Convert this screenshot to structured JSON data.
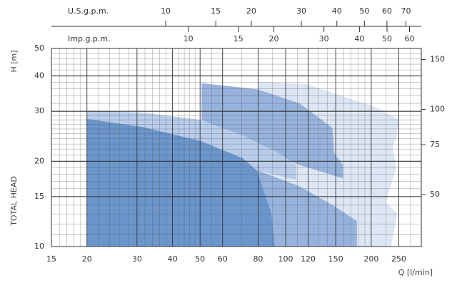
{
  "chart_data": {
    "type": "area",
    "xscale": "log",
    "yscale": "log",
    "xlabel": "Q [l/min]",
    "ylabel": "H [m]",
    "ylabel2": "TOTAL HEAD",
    "xlim": [
      15,
      300
    ],
    "ylim": [
      10,
      50
    ],
    "xticks": [
      15,
      20,
      30,
      40,
      50,
      60,
      80,
      100,
      120,
      150,
      200,
      250
    ],
    "yticks": [
      10,
      15,
      20,
      30,
      40,
      50
    ],
    "y2lim": [
      32.8,
      164
    ],
    "y2ticks": [
      50,
      75,
      100,
      150
    ],
    "xminor": [
      16,
      17,
      18,
      19,
      22,
      24,
      26,
      28,
      32,
      34,
      36,
      38,
      42,
      44,
      46,
      48,
      55,
      70,
      90,
      110,
      130,
      140,
      160,
      170,
      180,
      190,
      225,
      275
    ],
    "yminor": [
      11,
      12,
      13,
      14,
      16,
      17,
      18,
      19,
      21,
      22,
      23,
      24,
      25,
      26,
      27,
      28,
      29,
      32,
      34,
      36,
      38,
      42,
      44,
      46,
      48
    ],
    "grid": true,
    "top_axes": [
      {
        "label": "U.S.g.p.m.",
        "xlim": [
          3.963,
          79.26
        ],
        "xticks": [
          10,
          15,
          20,
          30,
          40,
          50,
          60,
          70
        ]
      },
      {
        "label": "Imp.g.p.m.",
        "xlim": [
          3.3,
          66
        ],
        "xticks": [
          10,
          15,
          20,
          30,
          40,
          50,
          60
        ]
      }
    ],
    "series": [
      {
        "color": "#dde6f4",
        "x": [
          80.3,
          119,
          168,
          212,
          250,
          245,
          238,
          245,
          225,
          247,
          235,
          75,
          75,
          80.3
        ],
        "values": [
          38.1,
          37.4,
          33.3,
          30.8,
          28.0,
          24.0,
          22.6,
          19.0,
          14.3,
          13.1,
          10,
          10,
          16.3,
          18.5
        ]
      },
      {
        "color": "#97b3dd",
        "x": [
          50.6,
          79.4,
          112,
          146,
          148,
          159,
          159,
          112,
          79.4,
          50.6
        ],
        "values": [
          37.7,
          35.9,
          32.0,
          26.2,
          21.4,
          19.4,
          17.4,
          19.4,
          22.3,
          28.0
        ]
      },
      {
        "color": "#97b3dd",
        "x": [
          75,
          80.3,
          112,
          150,
          178,
          178,
          75
        ],
        "values": [
          16.3,
          18.5,
          16.3,
          13.8,
          12.3,
          10,
          10
        ]
      },
      {
        "color": "#b9cdeb",
        "x": [
          20,
          31.5,
          50,
          70.7,
          94.4,
          109,
          109,
          80.3,
          75,
          75,
          20
        ],
        "values": [
          30.2,
          29.7,
          28.0,
          24.7,
          21.4,
          19.4,
          17.2,
          18.5,
          16.3,
          10,
          10
        ]
      },
      {
        "color": "#6b96cc",
        "x": [
          20,
          20,
          31.5,
          50,
          70.7,
          79.4,
          89,
          91.7
        ],
        "values": [
          10,
          28.2,
          26.4,
          23.6,
          20.5,
          18.5,
          13.1,
          10
        ]
      }
    ]
  }
}
